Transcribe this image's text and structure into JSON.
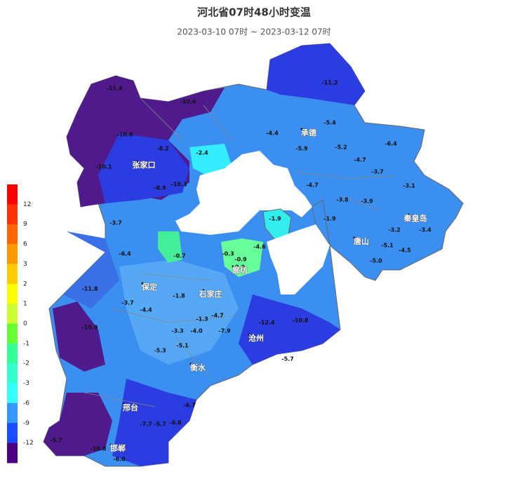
{
  "title": "河北省07时48小时变温",
  "subtitle": "2023-03-10 07时 ~ 2023-03-12 07时",
  "legend": {
    "labels": [
      "12",
      "9",
      "6",
      "3",
      "2",
      "1",
      "0",
      "-1",
      "-2",
      "-3",
      "-6",
      "-9",
      "-12"
    ],
    "colors": [
      "#ff0000",
      "#ff3300",
      "#ff6600",
      "#ff9900",
      "#ffcc00",
      "#ffff00",
      "#ccff33",
      "#66ff33",
      "#33ff99",
      "#33ffcc",
      "#33ffff",
      "#3399ff",
      "#1a4dff",
      "#4b0082"
    ]
  },
  "cities": [
    "张家口",
    "承德",
    "秦皇岛",
    "唐山",
    "廊坊",
    "保定",
    "石家庄",
    "沧州",
    "衡水",
    "邢台",
    "邯郸"
  ],
  "stations": [
    "-11.4",
    "-10.6",
    "-10.8",
    "-8.2",
    "-10.1",
    "-8.9",
    "-10.3",
    "-2.4",
    "-4.4",
    "-5.4",
    "-5.9",
    "-5.2",
    "-6.4",
    "-4.7",
    "-3.7",
    "-4.7",
    "-3.1",
    "-3.8",
    "-3.9",
    "-1.9",
    "-1.9",
    "-3.2",
    "-3.4",
    "-5.1",
    "-4.5",
    "-5.0",
    "-11.2",
    "-3.7",
    "-6.4",
    "-0.7",
    "-0.3",
    "-0.9",
    "0.0",
    "-4.6",
    "-11.8",
    "-1.8",
    "-1.3",
    "-4.7",
    "-7.9",
    "-12.4",
    "-10.8",
    "-10.9",
    "-3.7",
    "-4.4",
    "-5.3",
    "-5.1",
    "-3.3",
    "-4.0",
    "-5.7",
    "-6.7",
    "-6.8",
    "-7.7",
    "-5.7",
    "-10.8",
    "-6.0",
    "-5.7"
  ]
}
